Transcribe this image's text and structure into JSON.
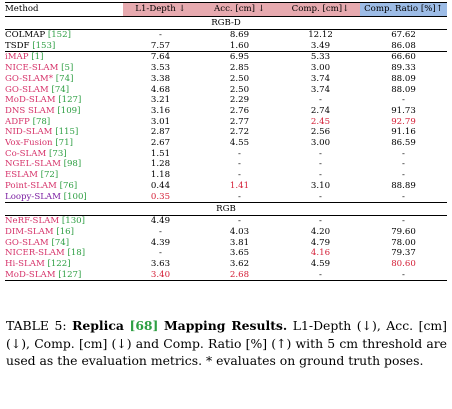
{
  "table": {
    "headers": [
      "Method",
      "L1-Depth ↓",
      "Acc. [cm] ↓",
      "Comp. [cm]↓",
      "Comp. Ratio [%]↑"
    ],
    "sections": [
      {
        "label": "RGB-D",
        "groups": [
          [
            {
              "name": "COLMAP",
              "ref": "152",
              "color": "black",
              "values": [
                "-",
                "8.69",
                "12.12",
                "67.62"
              ],
              "style": [
                "",
                "",
                "",
                ""
              ]
            },
            {
              "name": "TSDF",
              "ref": "153",
              "color": "black",
              "values": [
                "7.57",
                "1.60",
                "3.49",
                "86.08"
              ],
              "style": [
                "",
                "bold",
                "bold",
                "bold"
              ]
            }
          ],
          [
            {
              "name": "iMAP",
              "ref": "1",
              "color": "pink",
              "values": [
                "7.64",
                "6.95",
                "5.33",
                "66.60"
              ],
              "style": [
                "",
                "",
                "",
                ""
              ]
            },
            {
              "name": "NICE-SLAM",
              "ref": "5",
              "color": "pink",
              "values": [
                "3.53",
                "2.85",
                "3.00",
                "89.33"
              ],
              "style": [
                "",
                "",
                "",
                ""
              ]
            },
            {
              "name": "GO-SLAM*",
              "ref": "74",
              "color": "pink",
              "values": [
                "3.38",
                "2.50",
                "3.74",
                "88.09"
              ],
              "style": [
                "",
                "",
                "",
                ""
              ]
            },
            {
              "name": "GO-SLAM",
              "ref": "74",
              "color": "pink",
              "values": [
                "4.68",
                "2.50",
                "3.74",
                "88.09"
              ],
              "style": [
                "",
                "",
                "",
                ""
              ]
            },
            {
              "name": "MoD-SLAM",
              "ref": "127",
              "color": "pink",
              "values": [
                "3.21",
                "2.29",
                "-",
                "-"
              ],
              "style": [
                "",
                "",
                "",
                ""
              ]
            },
            {
              "name": "DNS SLAM",
              "ref": "109",
              "color": "pink",
              "values": [
                "3.16",
                "2.76",
                "2.74",
                "91.73"
              ],
              "style": [
                "",
                "",
                "",
                ""
              ]
            },
            {
              "name": "ADFP",
              "ref": "78",
              "color": "pink",
              "values": [
                "3.01",
                "2.77",
                "2.45",
                "92.79"
              ],
              "style": [
                "",
                "",
                "red",
                "red"
              ]
            },
            {
              "name": "NID-SLAM",
              "ref": "115",
              "color": "pink",
              "values": [
                "2.87",
                "2.72",
                "2.56",
                "91.16"
              ],
              "style": [
                "",
                "",
                "",
                ""
              ]
            },
            {
              "name": "Vox-Fusion",
              "ref": "71",
              "color": "pink",
              "values": [
                "2.67",
                "4.55",
                "3.00",
                "86.59"
              ],
              "style": [
                "",
                "",
                "",
                ""
              ]
            },
            {
              "name": "Co-SLAM",
              "ref": "73",
              "color": "pink",
              "values": [
                "1.51",
                "-",
                "-",
                "-"
              ],
              "style": [
                "",
                "",
                "",
                ""
              ]
            },
            {
              "name": "NGEL-SLAM",
              "ref": "98",
              "color": "pink",
              "values": [
                "1.28",
                "-",
                "-",
                "-"
              ],
              "style": [
                "",
                "",
                "",
                ""
              ]
            },
            {
              "name": "ESLAM",
              "ref": "72",
              "color": "pink",
              "values": [
                "1.18",
                "-",
                "-",
                "-"
              ],
              "style": [
                "",
                "",
                "",
                ""
              ]
            },
            {
              "name": "Point-SLAM",
              "ref": "76",
              "color": "pink",
              "values": [
                "0.44",
                "1.41",
                "3.10",
                "88.89"
              ],
              "style": [
                "",
                "red",
                "",
                ""
              ]
            },
            {
              "name": "Loopy-SLAM",
              "ref": "100",
              "color": "purple",
              "values": [
                "0.35",
                "-",
                "-",
                "-"
              ],
              "style": [
                "red",
                "",
                "",
                ""
              ]
            }
          ]
        ]
      },
      {
        "label": "RGB",
        "groups": [
          [
            {
              "name": "NeRF-SLAM",
              "ref": "130",
              "color": "pink",
              "values": [
                "4.49",
                "-",
                "-",
                "-"
              ],
              "style": [
                "",
                "",
                "",
                ""
              ]
            },
            {
              "name": "DIM-SLAM",
              "ref": "16",
              "color": "pink",
              "values": [
                "-",
                "4.03",
                "4.20",
                "79.60"
              ],
              "style": [
                "",
                "",
                "",
                ""
              ]
            },
            {
              "name": "GO-SLAM",
              "ref": "74",
              "color": "pink",
              "values": [
                "4.39",
                "3.81",
                "4.79",
                "78.00"
              ],
              "style": [
                "",
                "",
                "",
                ""
              ]
            },
            {
              "name": "NICER-SLAM",
              "ref": "18",
              "color": "pink",
              "values": [
                "-",
                "3.65",
                "4.16",
                "79.37"
              ],
              "style": [
                "",
                "",
                "red",
                ""
              ]
            },
            {
              "name": "Hi-SLAM",
              "ref": "122",
              "color": "pink",
              "values": [
                "3.63",
                "3.62",
                "4.59",
                "80.60"
              ],
              "style": [
                "",
                "",
                "",
                "red"
              ]
            },
            {
              "name": "MoD-SLAM",
              "ref": "127",
              "color": "pink",
              "values": [
                "3.40",
                "2.68",
                "-",
                "-"
              ],
              "style": [
                "red",
                "red",
                "",
                ""
              ]
            }
          ]
        ]
      }
    ]
  },
  "caption": {
    "label": "TABLE 5:",
    "title_a": "Replica",
    "ref": "[68]",
    "title_b": "Mapping Results.",
    "body": "L1-Depth (↓), Acc. [cm] (↓), Comp. [cm] (↓) and Comp. Ratio [%] (↑) with 5 cm threshold are used as the evaluation metrics. * evaluates on ground truth poses."
  },
  "colors": {
    "header_red": "#e7aaaf",
    "header_blue": "#9dbce6",
    "method_pink": "#d6336a",
    "method_purple": "#7b1fa2",
    "ref_green": "#2e9f43",
    "best_red": "#d41e36"
  }
}
